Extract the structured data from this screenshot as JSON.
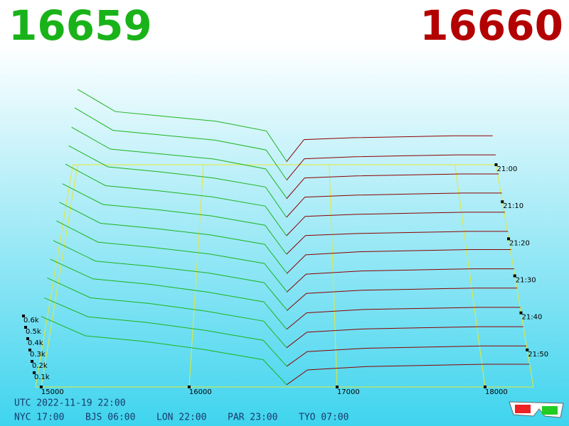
{
  "chart_data": {
    "type": "depth3d",
    "bid_price": 16659,
    "ask_price": 16660,
    "bid_color": "#1db31d",
    "ask_color": "#8b0000",
    "xlim": [
      14962,
      18327
    ],
    "xticks": [
      15000,
      16000,
      17000,
      18000
    ],
    "zticks": [
      {
        "value": 0.1,
        "label": "0.1k"
      },
      {
        "value": 0.2,
        "label": "0.2k"
      },
      {
        "value": 0.3,
        "label": "0.3k"
      },
      {
        "value": 0.4,
        "label": "0.4k"
      },
      {
        "value": 0.5,
        "label": "0.5k"
      },
      {
        "value": 0.6,
        "label": "0.6k"
      }
    ],
    "tlim": [
      0,
      60
    ],
    "tticks": [
      {
        "value": 0,
        "label": "21:00"
      },
      {
        "value": 10,
        "label": "21:10"
      },
      {
        "value": 20,
        "label": "21:20"
      },
      {
        "value": 30,
        "label": "21:30"
      },
      {
        "value": 40,
        "label": "21:40"
      },
      {
        "value": 50,
        "label": "21:50"
      }
    ],
    "times": [
      0,
      5,
      10,
      15,
      20,
      25,
      30,
      35,
      40,
      45,
      50,
      55,
      60
    ],
    "bid_prices": [
      15000,
      15300,
      15700,
      16100,
      16500,
      16659
    ],
    "ask_prices": [
      16660,
      16800,
      17200,
      17600,
      18000,
      18300
    ],
    "bids": [
      [
        0.78,
        0.55,
        0.5,
        0.45,
        0.35,
        0.04
      ],
      [
        0.77,
        0.54,
        0.49,
        0.44,
        0.34,
        0.04
      ],
      [
        0.75,
        0.53,
        0.48,
        0.43,
        0.33,
        0.04
      ],
      [
        0.74,
        0.53,
        0.48,
        0.42,
        0.33,
        0.03
      ],
      [
        0.73,
        0.52,
        0.47,
        0.41,
        0.32,
        0.03
      ],
      [
        0.71,
        0.51,
        0.46,
        0.4,
        0.31,
        0.03
      ],
      [
        0.7,
        0.5,
        0.45,
        0.39,
        0.3,
        0.03
      ],
      [
        0.69,
        0.49,
        0.44,
        0.38,
        0.29,
        0.03
      ],
      [
        0.67,
        0.48,
        0.43,
        0.37,
        0.28,
        0.03
      ],
      [
        0.66,
        0.48,
        0.43,
        0.36,
        0.27,
        0.02
      ],
      [
        0.65,
        0.47,
        0.42,
        0.35,
        0.26,
        0.02
      ],
      [
        0.63,
        0.46,
        0.41,
        0.34,
        0.25,
        0.02
      ],
      [
        0.62,
        0.45,
        0.4,
        0.33,
        0.24,
        0.02
      ]
    ],
    "asks": [
      [
        0.03,
        0.26,
        0.28,
        0.29,
        0.3,
        0.3
      ],
      [
        0.03,
        0.25,
        0.27,
        0.28,
        0.29,
        0.29
      ],
      [
        0.03,
        0.24,
        0.26,
        0.27,
        0.28,
        0.28
      ],
      [
        0.03,
        0.23,
        0.25,
        0.26,
        0.27,
        0.27
      ],
      [
        0.03,
        0.22,
        0.24,
        0.25,
        0.26,
        0.26
      ],
      [
        0.03,
        0.21,
        0.23,
        0.24,
        0.25,
        0.25
      ],
      [
        0.02,
        0.2,
        0.23,
        0.24,
        0.25,
        0.25
      ],
      [
        0.02,
        0.19,
        0.22,
        0.23,
        0.24,
        0.24
      ],
      [
        0.02,
        0.18,
        0.21,
        0.22,
        0.23,
        0.23
      ],
      [
        0.02,
        0.17,
        0.2,
        0.21,
        0.22,
        0.22
      ],
      [
        0.02,
        0.16,
        0.19,
        0.2,
        0.21,
        0.21
      ],
      [
        0.02,
        0.15,
        0.18,
        0.19,
        0.2,
        0.2
      ],
      [
        0.02,
        0.15,
        0.18,
        0.19,
        0.2,
        0.2
      ]
    ],
    "footer": {
      "utc": "UTC 2022-11-19 22:00",
      "cities": [
        "NYC 17:00",
        "BJS 06:00",
        "LON 22:00",
        "PAR 23:00",
        "TYO 07:00"
      ]
    }
  }
}
